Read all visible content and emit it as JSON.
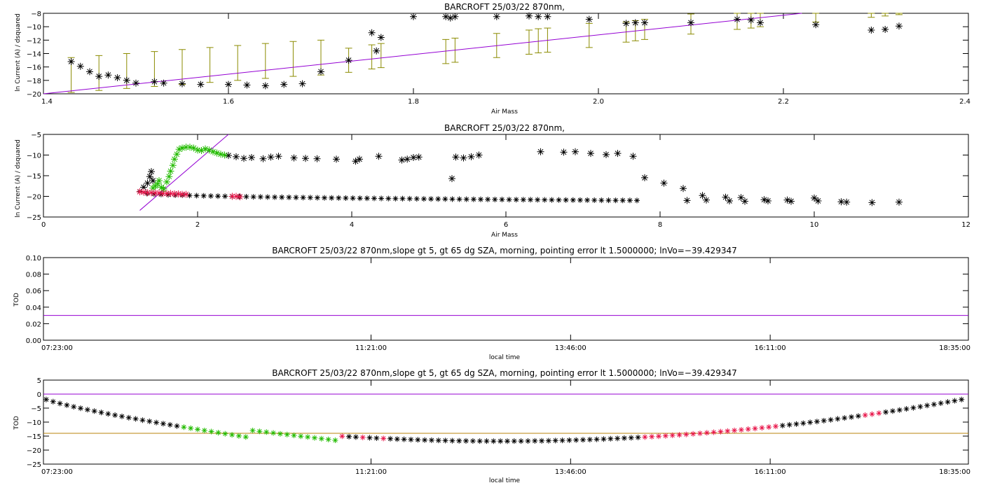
{
  "charts": [
    {
      "type": "scatter",
      "title": "BARCROFT 25/03/22 870nm,",
      "xlabel": "Air Mass",
      "ylabel": "ln Current (A) / dsquared",
      "xlim": [
        1.4,
        2.4
      ],
      "ylim": [
        -20,
        -8
      ],
      "xticks": [
        1.4,
        1.6,
        1.8,
        2.0,
        2.2,
        2.4
      ],
      "xtick_labels": [
        "1.4",
        "1.6",
        "1.8",
        "2.0",
        "2.2",
        "2.4"
      ],
      "yticks": [
        -20,
        -18,
        -16,
        -14,
        -12,
        -10,
        -8
      ],
      "ytick_labels": [
        "−20",
        "−18",
        "−16",
        "−14",
        "−12",
        "−10",
        "−8"
      ],
      "colors": {
        "points": "#000000",
        "fit": "#9400d3",
        "errorbars": "#8b8b00"
      },
      "points": [
        [
          1.43,
          -15.2
        ],
        [
          1.44,
          -15.9
        ],
        [
          1.45,
          -16.7
        ],
        [
          1.46,
          -17.4
        ],
        [
          1.47,
          -17.2
        ],
        [
          1.48,
          -17.6
        ],
        [
          1.49,
          -18.0
        ],
        [
          1.5,
          -18.4
        ],
        [
          1.52,
          -18.2
        ],
        [
          1.53,
          -18.4
        ],
        [
          1.55,
          -18.5
        ],
        [
          1.57,
          -18.6
        ],
        [
          1.6,
          -18.6
        ],
        [
          1.62,
          -18.7
        ],
        [
          1.64,
          -18.8
        ],
        [
          1.66,
          -18.6
        ],
        [
          1.68,
          -18.5
        ],
        [
          1.7,
          -16.7
        ],
        [
          1.73,
          -15.0
        ],
        [
          1.755,
          -10.9
        ],
        [
          1.76,
          -13.6
        ],
        [
          1.765,
          -11.6
        ],
        [
          1.8,
          -8.5
        ],
        [
          1.835,
          -8.5
        ],
        [
          1.84,
          -8.7
        ],
        [
          1.845,
          -8.5
        ],
        [
          1.89,
          -8.5
        ],
        [
          1.925,
          -8.4
        ],
        [
          1.935,
          -8.5
        ],
        [
          1.945,
          -8.5
        ],
        [
          1.99,
          -8.9
        ],
        [
          2.03,
          -9.5
        ],
        [
          2.04,
          -9.4
        ],
        [
          2.05,
          -9.4
        ],
        [
          2.1,
          -9.4
        ],
        [
          2.15,
          -8.9
        ],
        [
          2.165,
          -9.0
        ],
        [
          2.175,
          -9.4
        ],
        [
          2.235,
          -9.7
        ],
        [
          2.295,
          -10.5
        ],
        [
          2.31,
          -10.4
        ],
        [
          2.325,
          -9.9
        ]
      ],
      "fit_line": [
        [
          1.4,
          -20.0
        ],
        [
          2.22,
          -8.0
        ]
      ],
      "error_bars": [
        [
          1.43,
          -17.2,
          2.6
        ],
        [
          1.46,
          -16.9,
          2.6
        ],
        [
          1.49,
          -16.6,
          2.6
        ],
        [
          1.52,
          -16.3,
          2.6
        ],
        [
          1.55,
          -16.0,
          2.6
        ],
        [
          1.58,
          -15.7,
          2.6
        ],
        [
          1.61,
          -15.4,
          2.6
        ],
        [
          1.64,
          -15.1,
          2.6
        ],
        [
          1.67,
          -14.8,
          2.6
        ],
        [
          1.7,
          -14.6,
          2.6
        ],
        [
          1.73,
          -15.0,
          1.8
        ],
        [
          1.755,
          -14.5,
          1.8
        ],
        [
          1.765,
          -14.3,
          1.8
        ],
        [
          1.835,
          -13.7,
          1.8
        ],
        [
          1.845,
          -13.5,
          1.8
        ],
        [
          1.89,
          -12.8,
          1.8
        ],
        [
          1.925,
          -12.3,
          1.8
        ],
        [
          1.935,
          -12.1,
          1.8
        ],
        [
          1.945,
          -12.0,
          1.8
        ],
        [
          1.99,
          -11.3,
          1.8
        ],
        [
          2.03,
          -10.8,
          1.5
        ],
        [
          2.04,
          -10.6,
          1.5
        ],
        [
          2.05,
          -10.4,
          1.5
        ],
        [
          2.1,
          -9.6,
          1.5
        ],
        [
          2.15,
          -8.9,
          1.5
        ],
        [
          2.165,
          -8.7,
          1.5
        ],
        [
          2.175,
          -8.5,
          1.5
        ],
        [
          2.235,
          -7.8,
          1.5
        ],
        [
          2.295,
          -7.2,
          1.4
        ],
        [
          2.31,
          -7.0,
          1.4
        ],
        [
          2.325,
          -6.8,
          1.4
        ]
      ]
    },
    {
      "type": "scatter",
      "title": "BARCROFT 25/03/22 870nm,",
      "xlabel": "Air Mass",
      "ylabel": "ln Current (A) / dsquared",
      "xlim": [
        0,
        12
      ],
      "ylim": [
        -25,
        -5
      ],
      "xticks": [
        0,
        2,
        4,
        6,
        8,
        10,
        12
      ],
      "xtick_labels": [
        "0",
        "2",
        "4",
        "6",
        "8",
        "10",
        "12"
      ],
      "yticks": [
        -25,
        -20,
        -15,
        -10,
        -5
      ],
      "ytick_labels": [
        "−25",
        "−20",
        "−15",
        "−10",
        "−5"
      ],
      "colors": {
        "black": "#000000",
        "green": "#22bb00",
        "red": "#e8164a",
        "fit": "#9400d3"
      },
      "fit_line": [
        [
          1.25,
          -23.4
        ],
        [
          2.4,
          -5.0
        ]
      ],
      "black_points": [
        [
          1.3,
          -17.8
        ],
        [
          1.35,
          -16.8
        ],
        [
          1.38,
          -15.2
        ],
        [
          1.4,
          -14.0
        ],
        [
          1.42,
          -16.2
        ],
        [
          2.4,
          -10.1
        ],
        [
          2.5,
          -10.4
        ],
        [
          2.6,
          -10.8
        ],
        [
          2.7,
          -10.6
        ],
        [
          2.85,
          -10.9
        ],
        [
          2.95,
          -10.5
        ],
        [
          3.05,
          -10.3
        ],
        [
          3.25,
          -10.7
        ],
        [
          3.4,
          -10.8
        ],
        [
          3.55,
          -10.9
        ],
        [
          3.8,
          -11.0
        ],
        [
          4.05,
          -11.5
        ],
        [
          4.1,
          -11.0
        ],
        [
          4.35,
          -10.3
        ],
        [
          4.65,
          -11.2
        ],
        [
          4.72,
          -11.0
        ],
        [
          4.8,
          -10.6
        ],
        [
          4.87,
          -10.5
        ],
        [
          5.3,
          -15.7
        ],
        [
          5.35,
          -10.5
        ],
        [
          5.45,
          -10.7
        ],
        [
          5.55,
          -10.4
        ],
        [
          5.65,
          -10.0
        ],
        [
          6.45,
          -9.2
        ],
        [
          6.75,
          -9.3
        ],
        [
          6.9,
          -9.2
        ],
        [
          7.1,
          -9.6
        ],
        [
          7.3,
          -9.9
        ],
        [
          7.45,
          -9.6
        ],
        [
          7.65,
          -10.3
        ],
        [
          7.8,
          -15.5
        ],
        [
          8.05,
          -16.8
        ],
        [
          8.3,
          -18.1
        ],
        [
          8.35,
          -21.0
        ],
        [
          8.55,
          -19.8
        ],
        [
          8.6,
          -20.9
        ],
        [
          8.85,
          -20.2
        ],
        [
          8.9,
          -21.1
        ],
        [
          9.05,
          -20.3
        ],
        [
          9.1,
          -21.2
        ],
        [
          9.35,
          -20.8
        ],
        [
          9.4,
          -21.1
        ],
        [
          9.65,
          -20.9
        ],
        [
          9.7,
          -21.2
        ],
        [
          10.0,
          -20.4
        ],
        [
          10.05,
          -21.1
        ],
        [
          10.35,
          -21.3
        ],
        [
          10.42,
          -21.4
        ],
        [
          10.75,
          -21.5
        ],
        [
          11.1,
          -21.4
        ]
      ],
      "black_band": {
        "x_start": 1.25,
        "x_end": 7.7,
        "y_start": -18.8,
        "y_end": -21.0
      },
      "green_points": [
        [
          1.42,
          -18.0
        ],
        [
          1.45,
          -17.5
        ],
        [
          1.48,
          -17.0
        ],
        [
          1.5,
          -16.2
        ],
        [
          1.53,
          -17.8
        ],
        [
          1.56,
          -18.2
        ],
        [
          1.6,
          -16.5
        ],
        [
          1.63,
          -15.2
        ],
        [
          1.65,
          -13.9
        ],
        [
          1.68,
          -12.5
        ],
        [
          1.7,
          -11.0
        ],
        [
          1.73,
          -9.8
        ],
        [
          1.76,
          -8.6
        ],
        [
          1.8,
          -8.3
        ],
        [
          1.85,
          -8.1
        ],
        [
          1.9,
          -8.1
        ],
        [
          1.95,
          -8.3
        ],
        [
          2.0,
          -8.8
        ],
        [
          2.05,
          -8.9
        ],
        [
          2.1,
          -8.5
        ],
        [
          2.15,
          -8.8
        ],
        [
          2.2,
          -9.2
        ],
        [
          2.25,
          -9.5
        ],
        [
          2.3,
          -9.8
        ],
        [
          2.35,
          -10.0
        ]
      ],
      "red_points": [
        [
          1.25,
          -18.9
        ],
        [
          1.3,
          -19.0
        ],
        [
          1.35,
          -19.1
        ],
        [
          1.4,
          -19.1
        ],
        [
          1.45,
          -19.2
        ],
        [
          1.5,
          -19.2
        ],
        [
          1.55,
          -19.3
        ],
        [
          1.6,
          -19.3
        ],
        [
          1.65,
          -19.3
        ],
        [
          1.7,
          -19.4
        ],
        [
          1.75,
          -19.4
        ],
        [
          1.8,
          -19.5
        ],
        [
          1.85,
          -19.5
        ],
        [
          2.45,
          -20.0
        ],
        [
          2.5,
          -20.0
        ],
        [
          2.55,
          -20.1
        ]
      ]
    },
    {
      "type": "line",
      "title": "BARCROFT 25/03/22 870nm,slope gt 5, gt 65 dg SZA, morning, pointing error lt 1.5000000; lnVo=−39.429347",
      "xlabel": "local time",
      "ylabel": "TOD",
      "xlim": [
        "07:23:00",
        "18:35:00"
      ],
      "ylim": [
        0.0,
        0.1
      ],
      "xtick_labels": [
        "07:23:00",
        "11:21:00",
        "13:46:00",
        "16:11:00",
        "18:35:00"
      ],
      "ytick_labels": [
        "0.00",
        "0.02",
        "0.04",
        "0.06",
        "0.08",
        "0.10"
      ],
      "yticks": [
        0.0,
        0.02,
        0.04,
        0.06,
        0.08,
        0.1
      ],
      "colors": {
        "line": "#9400d3"
      },
      "hline": 0.03
    },
    {
      "type": "scatter",
      "title": "BARCROFT 25/03/22 870nm,slope gt 5, gt 65 dg SZA, morning, pointing error lt 1.5000000; lnVo=−39.429347",
      "xlabel": "local time",
      "ylabel": "TOD",
      "xlim": [
        "07:23:00",
        "18:35:00"
      ],
      "ylim": [
        -25,
        5
      ],
      "xtick_labels": [
        "07:23:00",
        "11:21:00",
        "13:46:00",
        "16:11:00",
        "18:35:00"
      ],
      "ytick_labels": [
        "−25",
        "−20",
        "−15",
        "−10",
        "−5",
        "0",
        "5"
      ],
      "yticks": [
        -25,
        -20,
        -15,
        -10,
        -5,
        0,
        5
      ],
      "colors": {
        "black": "#000000",
        "green": "#22bb00",
        "red": "#e8164a",
        "zero_line": "#9400d3",
        "ref_line": "#b8860b"
      },
      "hlines": [
        0,
        -14
      ]
    }
  ]
}
